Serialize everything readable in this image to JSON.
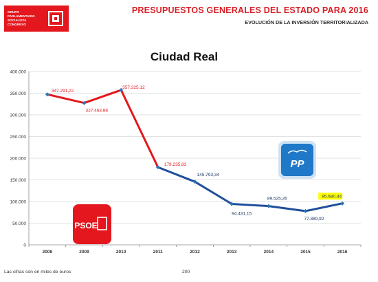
{
  "header": {
    "logo_lines": [
      "GRUPO",
      "PARLAMENTARIO",
      "SOCIALISTA",
      "CONGRESO"
    ],
    "title": "PRESUPUESTOS GENERALES DEL ESTADO PARA 2016",
    "subtitle": "EVOLUCIÓN DE LA INVERSIÓN TERRITORIALIZADA"
  },
  "footer": {
    "note": "Las cifras son en miles de euros",
    "page": "200"
  },
  "badges": {
    "psoe_label": "PSOE",
    "pp_label": "PP"
  },
  "colors": {
    "psoe_red": "#e3171d",
    "pp_blue": "#1f4e9c",
    "highlight": "#ffff00",
    "grid": "#d9d9d9"
  },
  "chart_data": {
    "type": "line",
    "title": "Ciudad Real",
    "xlabel": "",
    "ylabel": "",
    "categories": [
      "2008",
      "2009",
      "2010",
      "2011",
      "2012",
      "2013",
      "2014",
      "2015",
      "2016"
    ],
    "values": [
      347291.22,
      327463.88,
      357325.12,
      179235.83,
      145793.34,
      94431.15,
      89525.26,
      77889.92,
      95680.44
    ],
    "point_labels": [
      "347.291,22",
      "327.463,88",
      "357.325,12",
      "179.235,83",
      "145.793,34",
      "94.431,15",
      "89.525,26",
      "77.889,92",
      "95.680,44"
    ],
    "y_ticks": [
      0,
      50000,
      100000,
      150000,
      200000,
      250000,
      300000,
      350000,
      400000
    ],
    "y_tick_labels": [
      "0",
      "50.000",
      "100.000",
      "150.000",
      "200.000",
      "250.000",
      "300.000",
      "350.000",
      "400.000"
    ],
    "ylim": [
      0,
      400000
    ],
    "grid": true,
    "segments": [
      {
        "from": "2008",
        "to": "2011",
        "color": "#e3171d"
      },
      {
        "from": "2011",
        "to": "2016",
        "color": "#1f4e9c"
      }
    ],
    "highlighted_point": "2016"
  }
}
